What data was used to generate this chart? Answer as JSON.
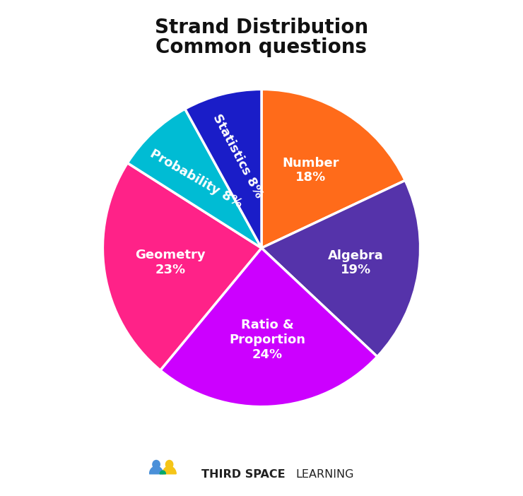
{
  "title_line1": "Strand Distribution",
  "title_line2": "Common questions",
  "slices": [
    {
      "label": "Number\n18%",
      "value": 18,
      "color": "#FF6B1A",
      "r_label": 0.58,
      "rotation": 0
    },
    {
      "label": "Algebra\n19%",
      "value": 19,
      "color": "#5533AA",
      "r_label": 0.6,
      "rotation": 0
    },
    {
      "label": "Ratio &\nProportion\n24%",
      "value": 24,
      "color": "#CC00FF",
      "r_label": 0.58,
      "rotation": 0
    },
    {
      "label": "Geometry\n23%",
      "value": 23,
      "color": "#FF2288",
      "r_label": 0.58,
      "rotation": 0
    },
    {
      "label": "Probability 8%",
      "value": 8,
      "color": "#00BCD4",
      "r_label": 0.6,
      "rotation": -30
    },
    {
      "label": "Statistics 8%",
      "value": 8,
      "color": "#1A1DC8",
      "r_label": 0.6,
      "rotation": -62
    }
  ],
  "text_color": "#FFFFFF",
  "background_color": "#FFFFFF",
  "title_fontsize": 20,
  "label_fontsize": 13,
  "startangle": 90
}
